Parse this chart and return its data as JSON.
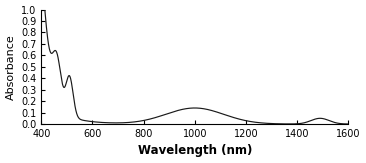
{
  "xlabel": "Wavelength (nm)",
  "ylabel": "Absorbance",
  "xlim": [
    400,
    1600
  ],
  "ylim": [
    0,
    1.0
  ],
  "yticks": [
    0,
    0.1,
    0.2,
    0.3,
    0.4,
    0.5,
    0.6,
    0.7,
    0.8,
    0.9,
    1
  ],
  "xticks": [
    400,
    600,
    800,
    1000,
    1200,
    1400,
    1600
  ],
  "line_color": "#1a1a1a",
  "background_color": "#ffffff",
  "xlabel_fontsize": 8.5,
  "ylabel_fontsize": 8,
  "tick_fontsize": 7
}
